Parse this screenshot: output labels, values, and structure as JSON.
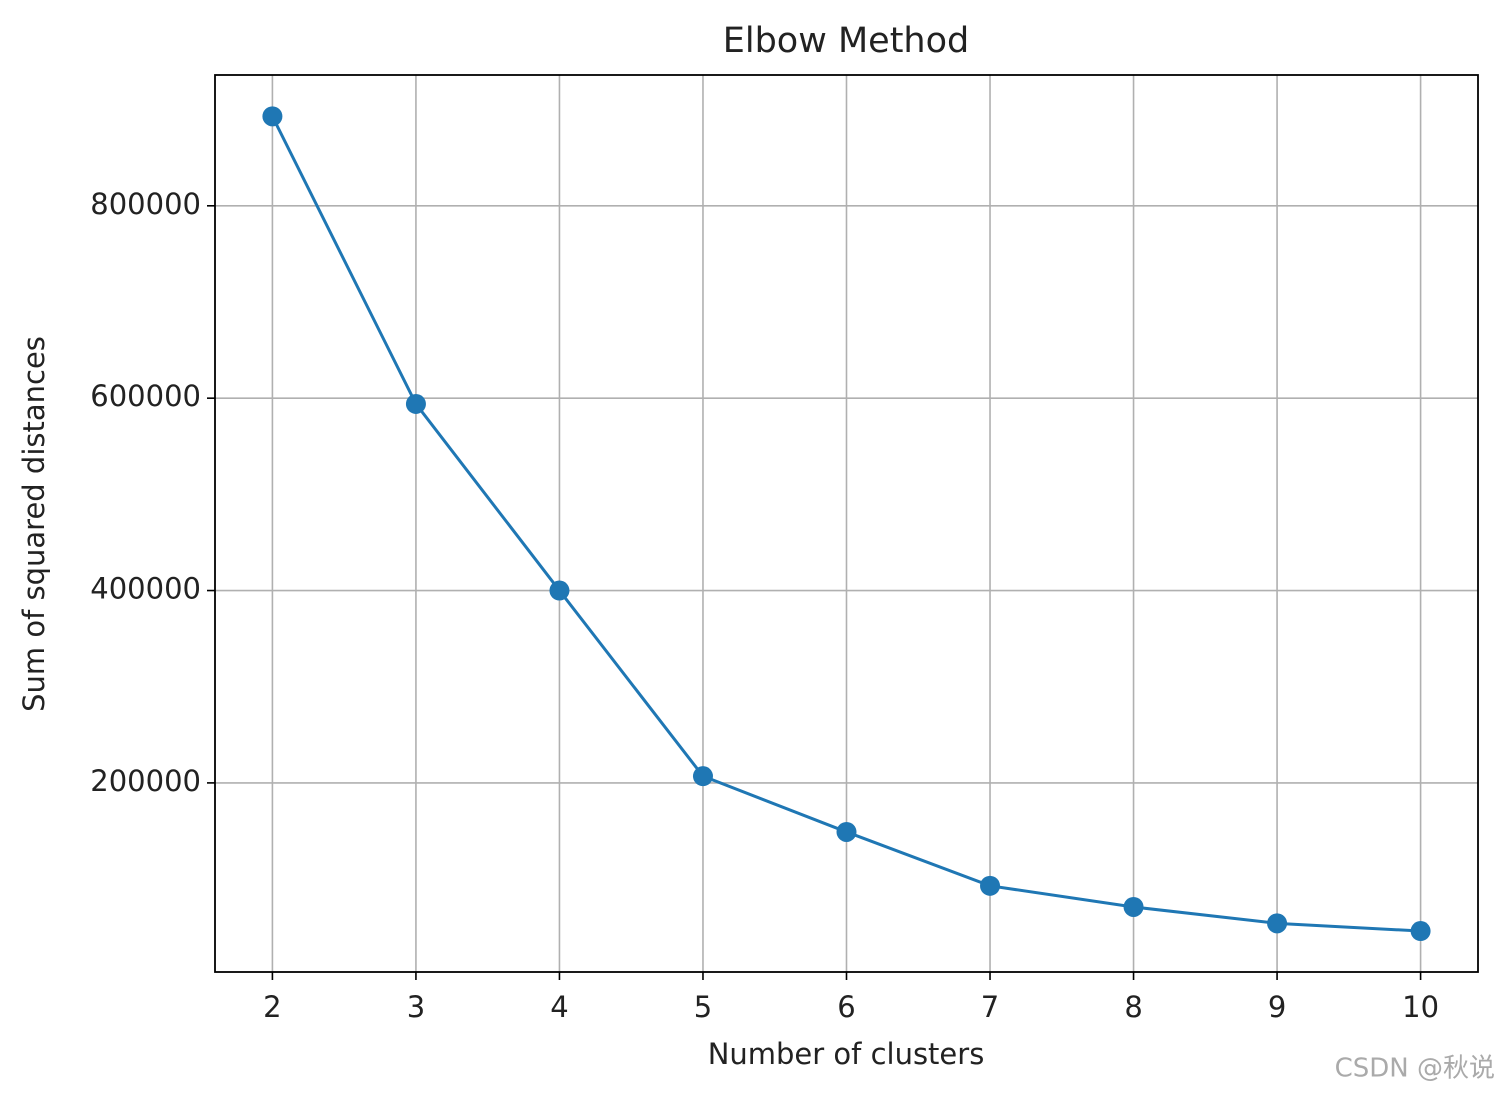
{
  "chart_data": {
    "type": "line",
    "title": "Elbow Method",
    "x_label": "Number of clusters",
    "y_label": "Sum of squared distances",
    "x": [
      2,
      3,
      4,
      5,
      6,
      7,
      8,
      9,
      10
    ],
    "series": [
      {
        "name": "SSE",
        "color": "#1f77b4",
        "values": [
          893000,
          594000,
          400000,
          207000,
          149000,
          93000,
          71000,
          54000,
          46000
        ]
      }
    ],
    "xlim": [
      1.6,
      10.4
    ],
    "xticks": [
      2,
      3,
      4,
      5,
      6,
      7,
      8,
      9,
      10
    ],
    "ylim": [
      3400,
      936000
    ],
    "yticks": [
      200000,
      400000,
      600000,
      800000
    ],
    "grid": true,
    "marker": "circle",
    "watermark": "CSDN @秋说"
  }
}
